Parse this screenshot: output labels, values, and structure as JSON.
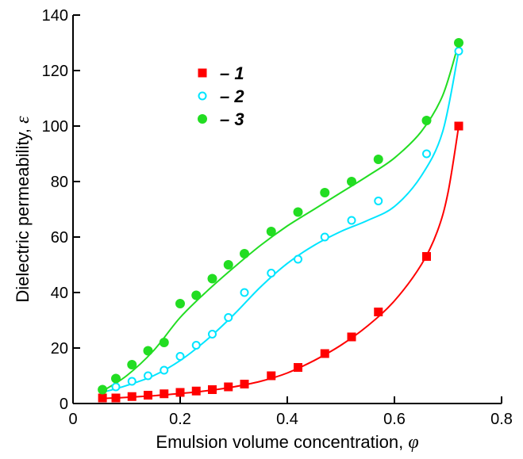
{
  "chart_data": {
    "type": "scatter",
    "xlabel": "Emulsion volume concentration, ",
    "xlabel_symbol": "φ",
    "ylabel": "Dielectric permeability, ",
    "ylabel_symbol": "ε",
    "xlim": [
      0,
      0.8
    ],
    "ylim": [
      0,
      140
    ],
    "x_ticks": [
      0,
      0.2,
      0.4,
      0.6,
      0.8
    ],
    "x_tick_labels": [
      "0",
      "0.2",
      "0.4",
      "0.6",
      "0.8"
    ],
    "y_ticks": [
      0,
      20,
      40,
      60,
      80,
      100,
      120,
      140
    ],
    "y_tick_labels": [
      "0",
      "20",
      "40",
      "60",
      "80",
      "100",
      "120",
      "140"
    ],
    "grid": false,
    "legend_position": "top-left",
    "series": [
      {
        "name": "– 1",
        "marker": "square",
        "color": "#ff0000",
        "x": [
          0.055,
          0.08,
          0.11,
          0.14,
          0.17,
          0.2,
          0.23,
          0.26,
          0.29,
          0.32,
          0.37,
          0.42,
          0.47,
          0.52,
          0.57,
          0.66,
          0.72
        ],
        "y": [
          2,
          2,
          2.5,
          3,
          3.5,
          4,
          4.5,
          5,
          6,
          7,
          10,
          13,
          18,
          24,
          33,
          53,
          100
        ],
        "curve": [
          [
            0.055,
            1.8
          ],
          [
            0.1,
            2.2
          ],
          [
            0.15,
            2.8
          ],
          [
            0.2,
            3.6
          ],
          [
            0.25,
            4.6
          ],
          [
            0.3,
            6
          ],
          [
            0.35,
            8
          ],
          [
            0.4,
            11
          ],
          [
            0.45,
            15.5
          ],
          [
            0.5,
            21
          ],
          [
            0.55,
            28
          ],
          [
            0.6,
            37
          ],
          [
            0.65,
            50
          ],
          [
            0.68,
            62
          ],
          [
            0.7,
            76
          ],
          [
            0.72,
            100
          ]
        ]
      },
      {
        "name": "– 2",
        "marker": "open-circle",
        "color": "#00e5ff",
        "x": [
          0.055,
          0.08,
          0.11,
          0.14,
          0.17,
          0.2,
          0.23,
          0.26,
          0.29,
          0.32,
          0.37,
          0.42,
          0.47,
          0.52,
          0.57,
          0.66,
          0.72
        ],
        "y": [
          5,
          6,
          8,
          10,
          12,
          17,
          21,
          25,
          31,
          40,
          47,
          52,
          60,
          66,
          73,
          90,
          127
        ],
        "curve": [
          [
            0.055,
            4
          ],
          [
            0.1,
            6.5
          ],
          [
            0.15,
            10
          ],
          [
            0.2,
            15.5
          ],
          [
            0.25,
            23
          ],
          [
            0.3,
            32
          ],
          [
            0.35,
            42
          ],
          [
            0.4,
            50.5
          ],
          [
            0.45,
            57
          ],
          [
            0.5,
            62
          ],
          [
            0.55,
            66
          ],
          [
            0.6,
            71
          ],
          [
            0.65,
            82
          ],
          [
            0.69,
            98
          ],
          [
            0.72,
            127
          ]
        ]
      },
      {
        "name": "– 3",
        "marker": "filled-circle",
        "color": "#22dd22",
        "x": [
          0.055,
          0.08,
          0.11,
          0.14,
          0.17,
          0.2,
          0.23,
          0.26,
          0.29,
          0.32,
          0.37,
          0.42,
          0.47,
          0.52,
          0.57,
          0.66,
          0.72
        ],
        "y": [
          5,
          9,
          14,
          19,
          22,
          36,
          39,
          45,
          50,
          54,
          62,
          69,
          76,
          80,
          88,
          102,
          130
        ],
        "curve": [
          [
            0.055,
            4.5
          ],
          [
            0.1,
            10
          ],
          [
            0.15,
            19
          ],
          [
            0.2,
            31
          ],
          [
            0.25,
            40.5
          ],
          [
            0.3,
            49
          ],
          [
            0.35,
            57
          ],
          [
            0.4,
            64
          ],
          [
            0.45,
            70
          ],
          [
            0.5,
            76
          ],
          [
            0.55,
            82
          ],
          [
            0.6,
            88.5
          ],
          [
            0.65,
            98
          ],
          [
            0.69,
            111
          ],
          [
            0.72,
            130
          ]
        ]
      }
    ]
  }
}
